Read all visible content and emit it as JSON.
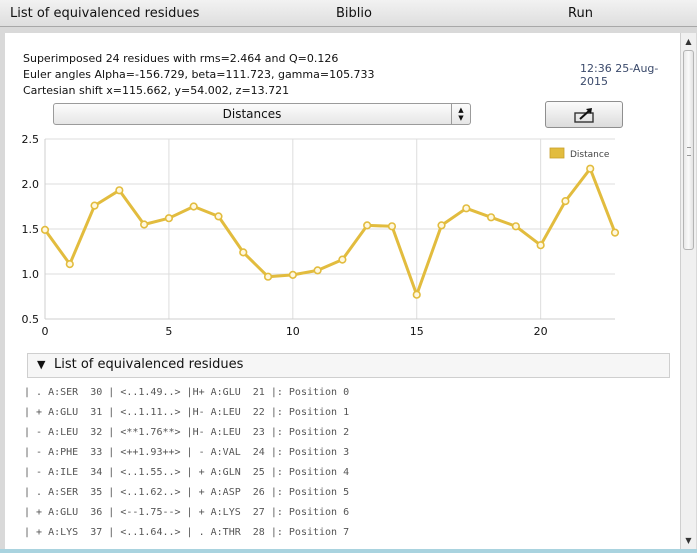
{
  "menu": {
    "equivalence": "List of equivalenced residues",
    "biblio": "Biblio",
    "run": "Run"
  },
  "summary": {
    "line1": "Superimposed 24 residues with rms=2.464 and Q=0.126",
    "line2": "Euler angles Alpha=-156.729, beta=111.723, gamma=105.733",
    "line3": "Cartesian shift x=115.662, y=54.002, z=13.721",
    "timestamp": "12:36 25-Aug-2015"
  },
  "plot_selector": {
    "value": "Distances"
  },
  "export_button": {
    "icon": "export-arrow-icon"
  },
  "chart_data": {
    "type": "line",
    "x": [
      0,
      1,
      2,
      3,
      4,
      5,
      6,
      7,
      8,
      9,
      10,
      11,
      12,
      13,
      14,
      15,
      16,
      17,
      18,
      19,
      20,
      21,
      22,
      23
    ],
    "series": [
      {
        "name": "Distance",
        "values": [
          1.49,
          1.11,
          1.76,
          1.93,
          1.55,
          1.62,
          1.75,
          1.64,
          1.24,
          0.97,
          0.99,
          1.04,
          1.16,
          1.54,
          1.53,
          0.77,
          1.54,
          1.73,
          1.63,
          1.53,
          1.32,
          1.81,
          2.17,
          1.46
        ],
        "color": "#e2bc3e"
      }
    ],
    "xticks": [
      "0",
      "5",
      "10",
      "15",
      "20"
    ],
    "yticks": [
      "0.5",
      "1.0",
      "1.5",
      "2.0",
      "2.5"
    ],
    "xlim": [
      0,
      23
    ],
    "ylim": [
      0.5,
      2.5
    ],
    "grid": true,
    "legend": "top-right"
  },
  "residue_section": {
    "title": "List of equivalenced residues",
    "rows": [
      "| . A:SER  30 | <..1.49..> |H+ A:GLU  21 |: Position 0",
      "| + A:GLU  31 | <..1.11..> |H- A:LEU  22 |: Position 1",
      "| - A:LEU  32 | <**1.76**> |H- A:LEU  23 |: Position 2",
      "| - A:PHE  33 | <++1.93++> | - A:VAL  24 |: Position 3",
      "| - A:ILE  34 | <..1.55..> | + A:GLN  25 |: Position 4",
      "| . A:SER  35 | <..1.62..> | + A:ASP  26 |: Position 5",
      "| + A:GLU  36 | <--1.75--> | + A:LYS  27 |: Position 6",
      "| + A:LYS  37 | <..1.64..> | . A:THR  28 |: Position 7"
    ]
  },
  "colors": {
    "line": "#e2bc3e",
    "marker_fill": "#fff8df",
    "timestamp": "#3b4a6b",
    "bottom_strip": "#a9d3df"
  }
}
